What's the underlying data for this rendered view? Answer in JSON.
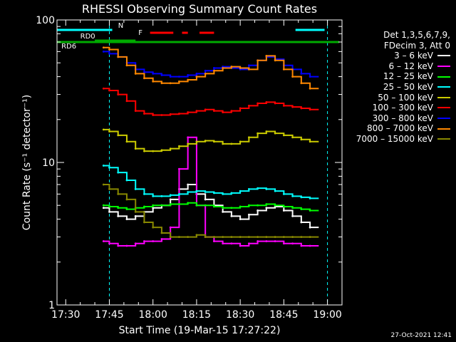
{
  "chart_data": {
    "type": "line",
    "title": "RHESSI Observing Summary Count Rates",
    "xlabel": "Start Time (19-Mar-15 17:27:22)",
    "ylabel": "Count Rate (s⁻¹ detector⁻¹)",
    "yscale": "log",
    "ylim": [
      1,
      100
    ],
    "xlim_minutes_after_1730": [
      -3,
      95
    ],
    "xticks": [
      "17:30",
      "17:45",
      "18:00",
      "18:15",
      "18:30",
      "18:45",
      "19:00"
    ],
    "yticks": [
      "1",
      "10",
      "100"
    ],
    "grid": false,
    "legend_position": "right",
    "legend_header": [
      "Det 1,3,5,6,7,9,",
      "FDecim 3, Att 0"
    ],
    "timestamp": "27-Oct-2021 12:41",
    "flags": [
      {
        "label": "N",
        "color": "#00ffff",
        "segments": [
          [
            -3,
            16
          ],
          [
            79,
            89
          ]
        ]
      },
      {
        "label": "F",
        "color": "#ff0000",
        "segments": [
          [
            29,
            37
          ],
          [
            40,
            42
          ],
          [
            46,
            51
          ]
        ]
      },
      {
        "label": "RD0",
        "color": "#00aa00",
        "segments": [
          [
            10,
            24
          ]
        ]
      },
      {
        "label": "RD6",
        "color": "#00aa00",
        "segments": [
          [
            -3,
            94
          ]
        ]
      }
    ],
    "orbit_markers": [
      {
        "x": 15,
        "style": "dashed",
        "color": "#00ffff"
      },
      {
        "x": 90,
        "style": "dashed",
        "color": "#00ffff"
      }
    ],
    "x": [
      13,
      15,
      18,
      21,
      24,
      27,
      30,
      33,
      36,
      39,
      42,
      45,
      48,
      51,
      54,
      57,
      60,
      63,
      66,
      69,
      72,
      75,
      78,
      81,
      84
    ],
    "series": [
      {
        "name": "3 - 6 keV",
        "color": "#ffffff",
        "values": [
          4.8,
          4.5,
          4.2,
          4.0,
          4.2,
          4.5,
          4.8,
          5.0,
          5.5,
          6.5,
          7.0,
          6.0,
          5.5,
          5.0,
          4.5,
          4.2,
          4.0,
          4.3,
          4.6,
          4.8,
          4.9,
          4.6,
          4.2,
          3.8,
          3.5
        ]
      },
      {
        "name": "6 - 12 keV",
        "color": "#ff00ff",
        "values": [
          2.8,
          2.7,
          2.6,
          2.6,
          2.7,
          2.8,
          2.8,
          2.9,
          3.5,
          9.0,
          15.0,
          5.0,
          3.0,
          2.8,
          2.7,
          2.7,
          2.6,
          2.7,
          2.8,
          2.8,
          2.8,
          2.7,
          2.7,
          2.6,
          2.6
        ]
      },
      {
        "name": "12 - 25 keV",
        "color": "#00ff00",
        "values": [
          5.0,
          4.9,
          4.8,
          4.7,
          4.8,
          4.9,
          5.0,
          5.0,
          5.1,
          5.1,
          5.2,
          5.0,
          5.0,
          4.9,
          4.8,
          4.8,
          4.9,
          5.0,
          5.0,
          5.1,
          5.0,
          4.9,
          4.8,
          4.7,
          4.6
        ]
      },
      {
        "name": "25 - 50 keV",
        "color": "#00ffff",
        "values": [
          9.5,
          9.2,
          8.5,
          7.5,
          6.5,
          6.0,
          5.8,
          5.8,
          5.9,
          6.0,
          6.2,
          6.3,
          6.2,
          6.1,
          6.0,
          6.1,
          6.3,
          6.5,
          6.6,
          6.5,
          6.3,
          6.0,
          5.8,
          5.7,
          5.6
        ]
      },
      {
        "name": "50 - 100 keV",
        "color": "#cccc00",
        "values": [
          17.0,
          16.5,
          15.5,
          14.0,
          12.5,
          12.0,
          12.0,
          12.2,
          12.5,
          13.0,
          13.5,
          14.0,
          14.2,
          14.0,
          13.5,
          13.5,
          14.0,
          15.0,
          16.0,
          16.5,
          16.0,
          15.5,
          15.0,
          14.5,
          14.0
        ]
      },
      {
        "name": "100 - 300 keV",
        "color": "#ff0000",
        "values": [
          33.0,
          32.0,
          30.0,
          27.0,
          23.0,
          22.0,
          21.5,
          21.5,
          21.8,
          22.0,
          22.5,
          23.0,
          23.5,
          23.0,
          22.5,
          23.0,
          24.0,
          25.0,
          26.0,
          26.5,
          26.0,
          25.0,
          24.5,
          24.0,
          23.5
        ]
      },
      {
        "name": "300 - 800 keV",
        "color": "#0000ff",
        "values": [
          60.0,
          58.0,
          55.0,
          50.0,
          45.0,
          43.0,
          42.0,
          41.0,
          40.0,
          40.0,
          41.0,
          42.0,
          44.0,
          46.0,
          47.0,
          46.0,
          45.0,
          48.0,
          52.0,
          55.0,
          53.0,
          48.0,
          45.0,
          42.0,
          40.0
        ]
      },
      {
        "name": "800 - 7000 keV",
        "color": "#ff8800",
        "values": [
          64.0,
          62.0,
          55.0,
          48.0,
          42.0,
          39.0,
          37.0,
          36.0,
          36.0,
          37.0,
          38.0,
          40.0,
          42.0,
          44.0,
          46.0,
          47.0,
          46.0,
          45.0,
          52.0,
          56.0,
          52.0,
          45.0,
          40.0,
          36.0,
          33.0
        ]
      },
      {
        "name": "7000 - 15000 keV",
        "color": "#888800",
        "values": [
          7.0,
          6.5,
          6.0,
          5.5,
          4.5,
          3.8,
          3.5,
          3.2,
          3.0,
          3.0,
          3.0,
          3.1,
          3.0,
          3.0,
          3.0,
          3.0,
          3.0,
          3.0,
          3.0,
          3.0,
          3.0,
          3.0,
          3.0,
          3.0,
          3.0
        ]
      }
    ]
  }
}
